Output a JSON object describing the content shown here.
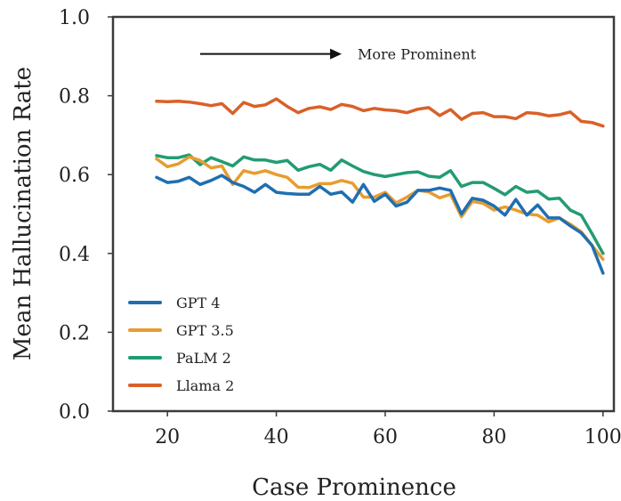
{
  "chart_data": {
    "type": "line",
    "title": "",
    "xlabel": "Case Prominence",
    "ylabel": "Mean Hallucination Rate",
    "xlim": [
      10,
      102
    ],
    "ylim": [
      0.0,
      1.0
    ],
    "xticks": [
      20,
      40,
      60,
      80,
      100
    ],
    "yticks": [
      0.0,
      0.2,
      0.4,
      0.6,
      0.8,
      1.0
    ],
    "ytick_labels": [
      "0.0",
      "0.2",
      "0.4",
      "0.6",
      "0.8",
      "1.0"
    ],
    "grid": false,
    "legend_position": "bottom-left",
    "annotation": {
      "text": "More Prominent",
      "arrow_from_x": 26,
      "arrow_to_x": 52,
      "y": 0.906
    },
    "x": [
      18,
      20,
      22,
      24,
      26,
      28,
      30,
      32,
      34,
      36,
      38,
      40,
      42,
      44,
      46,
      48,
      50,
      52,
      54,
      56,
      58,
      60,
      62,
      64,
      66,
      68,
      70,
      72,
      74,
      76,
      78,
      80,
      82,
      84,
      86,
      88,
      90,
      92,
      94,
      96,
      98,
      100
    ],
    "series": [
      {
        "name": "GPT 4",
        "color": "#1f6fb0",
        "values": [
          0.593,
          0.58,
          0.583,
          0.593,
          0.575,
          0.585,
          0.598,
          0.58,
          0.57,
          0.555,
          0.575,
          0.555,
          0.552,
          0.55,
          0.55,
          0.57,
          0.55,
          0.556,
          0.53,
          0.575,
          0.532,
          0.55,
          0.52,
          0.53,
          0.56,
          0.56,
          0.566,
          0.56,
          0.5,
          0.54,
          0.535,
          0.52,
          0.497,
          0.537,
          0.497,
          0.523,
          0.49,
          0.49,
          0.47,
          0.452,
          0.42,
          0.35
        ]
      },
      {
        "name": "GPT 3.5",
        "color": "#e89c30",
        "values": [
          0.64,
          0.62,
          0.627,
          0.645,
          0.636,
          0.617,
          0.622,
          0.575,
          0.61,
          0.603,
          0.61,
          0.6,
          0.593,
          0.568,
          0.567,
          0.577,
          0.577,
          0.585,
          0.578,
          0.543,
          0.543,
          0.555,
          0.528,
          0.543,
          0.56,
          0.556,
          0.541,
          0.55,
          0.493,
          0.532,
          0.527,
          0.51,
          0.518,
          0.51,
          0.5,
          0.497,
          0.48,
          0.49,
          0.474,
          0.455,
          0.42,
          0.385
        ]
      },
      {
        "name": "PaLM 2",
        "color": "#229c72",
        "values": [
          0.648,
          0.643,
          0.643,
          0.65,
          0.625,
          0.643,
          0.633,
          0.622,
          0.645,
          0.637,
          0.637,
          0.631,
          0.636,
          0.611,
          0.62,
          0.626,
          0.611,
          0.637,
          0.622,
          0.608,
          0.6,
          0.595,
          0.6,
          0.605,
          0.607,
          0.596,
          0.593,
          0.61,
          0.57,
          0.58,
          0.58,
          0.565,
          0.549,
          0.57,
          0.555,
          0.558,
          0.538,
          0.54,
          0.51,
          0.497,
          0.45,
          0.4
        ]
      },
      {
        "name": "Llama 2",
        "color": "#d96029",
        "values": [
          0.786,
          0.785,
          0.786,
          0.784,
          0.78,
          0.775,
          0.78,
          0.755,
          0.783,
          0.773,
          0.777,
          0.792,
          0.773,
          0.757,
          0.768,
          0.772,
          0.765,
          0.778,
          0.773,
          0.762,
          0.768,
          0.764,
          0.762,
          0.757,
          0.766,
          0.77,
          0.75,
          0.765,
          0.74,
          0.755,
          0.757,
          0.747,
          0.747,
          0.742,
          0.757,
          0.755,
          0.749,
          0.752,
          0.759,
          0.735,
          0.732,
          0.723
        ]
      }
    ]
  }
}
